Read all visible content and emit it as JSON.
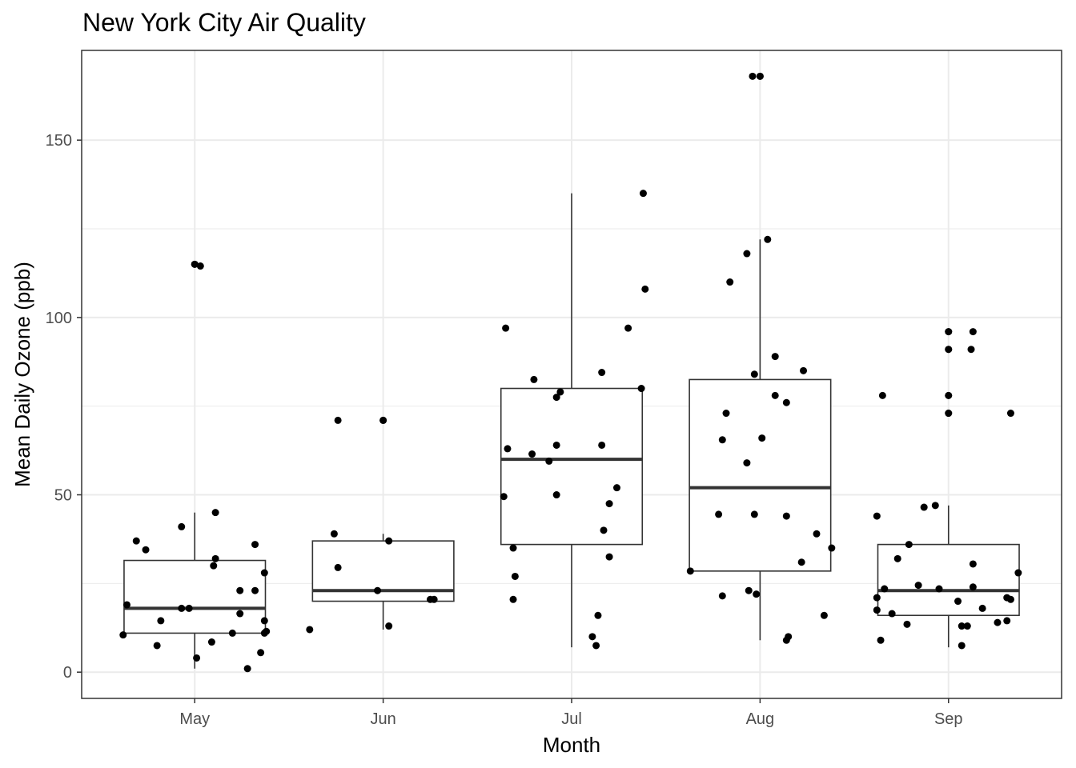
{
  "chart_data": {
    "type": "box",
    "title": "New York City Air Quality",
    "xlabel": "Month",
    "ylabel": "Mean Daily Ozone (ppb)",
    "categories": [
      "May",
      "Jun",
      "Jul",
      "Aug",
      "Sep"
    ],
    "ylim": [
      -7.4,
      175.3
    ],
    "yticks": [
      0,
      50,
      100,
      150
    ],
    "grid": true,
    "legend": "none",
    "boxes": [
      {
        "category": "May",
        "whisker_low": 1,
        "q1": 11,
        "median": 18,
        "q3": 31.5,
        "whisker_high": 45,
        "outliers": [
          115
        ]
      },
      {
        "category": "Jun",
        "whisker_low": 12,
        "q1": 20,
        "median": 23,
        "q3": 37,
        "whisker_high": 39,
        "outliers": [
          71
        ]
      },
      {
        "category": "Jul",
        "whisker_low": 7,
        "q1": 36,
        "median": 60,
        "q3": 80,
        "whisker_high": 135,
        "outliers": []
      },
      {
        "category": "Aug",
        "whisker_low": 9,
        "q1": 28.5,
        "median": 52,
        "q3": 82.5,
        "whisker_high": 122,
        "outliers": [
          168
        ]
      },
      {
        "category": "Sep",
        "whisker_low": 7,
        "q1": 16,
        "median": 23,
        "q3": 36,
        "whisker_high": 47,
        "outliers": [
          73,
          78,
          91,
          96
        ]
      }
    ],
    "points": [
      {
        "category": "May",
        "jitter": -0.36,
        "y": 19
      },
      {
        "category": "May",
        "jitter": -0.38,
        "y": 10.5
      },
      {
        "category": "May",
        "jitter": -0.31,
        "y": 37
      },
      {
        "category": "May",
        "jitter": -0.26,
        "y": 34.5
      },
      {
        "category": "May",
        "jitter": -0.2,
        "y": 7.5
      },
      {
        "category": "May",
        "jitter": -0.18,
        "y": 14.5
      },
      {
        "category": "May",
        "jitter": -0.07,
        "y": 41
      },
      {
        "category": "May",
        "jitter": -0.07,
        "y": 18
      },
      {
        "category": "May",
        "jitter": -0.03,
        "y": 18
      },
      {
        "category": "May",
        "jitter": 0.0,
        "y": 115
      },
      {
        "category": "May",
        "jitter": 0.03,
        "y": 114.5
      },
      {
        "category": "May",
        "jitter": 0.01,
        "y": 4
      },
      {
        "category": "May",
        "jitter": 0.11,
        "y": 45
      },
      {
        "category": "May",
        "jitter": 0.11,
        "y": 32
      },
      {
        "category": "May",
        "jitter": 0.1,
        "y": 30
      },
      {
        "category": "May",
        "jitter": 0.09,
        "y": 8.5
      },
      {
        "category": "May",
        "jitter": 0.2,
        "y": 11
      },
      {
        "category": "May",
        "jitter": 0.24,
        "y": 23
      },
      {
        "category": "May",
        "jitter": 0.24,
        "y": 16.5
      },
      {
        "category": "May",
        "jitter": 0.28,
        "y": 1
      },
      {
        "category": "May",
        "jitter": 0.32,
        "y": 36
      },
      {
        "category": "May",
        "jitter": 0.32,
        "y": 23
      },
      {
        "category": "May",
        "jitter": 0.35,
        "y": 5.5
      },
      {
        "category": "May",
        "jitter": 0.37,
        "y": 28
      },
      {
        "category": "May",
        "jitter": 0.37,
        "y": 14.5
      },
      {
        "category": "May",
        "jitter": 0.37,
        "y": 11
      },
      {
        "category": "May",
        "jitter": 0.38,
        "y": 11.5
      },
      {
        "category": "Jun",
        "jitter": -0.39,
        "y": 12
      },
      {
        "category": "Jun",
        "jitter": -0.26,
        "y": 39
      },
      {
        "category": "Jun",
        "jitter": -0.24,
        "y": 29.5
      },
      {
        "category": "Jun",
        "jitter": -0.24,
        "y": 71
      },
      {
        "category": "Jun",
        "jitter": -0.03,
        "y": 23
      },
      {
        "category": "Jun",
        "jitter": 0.0,
        "y": 71
      },
      {
        "category": "Jun",
        "jitter": 0.03,
        "y": 37
      },
      {
        "category": "Jun",
        "jitter": 0.03,
        "y": 13
      },
      {
        "category": "Jun",
        "jitter": 0.25,
        "y": 20.5
      },
      {
        "category": "Jun",
        "jitter": 0.27,
        "y": 20.5
      },
      {
        "category": "Jul",
        "jitter": -0.35,
        "y": 97
      },
      {
        "category": "Jul",
        "jitter": -0.34,
        "y": 63
      },
      {
        "category": "Jul",
        "jitter": -0.36,
        "y": 49.5
      },
      {
        "category": "Jul",
        "jitter": -0.31,
        "y": 35
      },
      {
        "category": "Jul",
        "jitter": -0.3,
        "y": 27
      },
      {
        "category": "Jul",
        "jitter": -0.31,
        "y": 20.5
      },
      {
        "category": "Jul",
        "jitter": -0.2,
        "y": 82.5
      },
      {
        "category": "Jul",
        "jitter": -0.21,
        "y": 61.5
      },
      {
        "category": "Jul",
        "jitter": -0.12,
        "y": 59.5
      },
      {
        "category": "Jul",
        "jitter": -0.08,
        "y": 77.5
      },
      {
        "category": "Jul",
        "jitter": -0.06,
        "y": 79
      },
      {
        "category": "Jul",
        "jitter": -0.08,
        "y": 64
      },
      {
        "category": "Jul",
        "jitter": -0.08,
        "y": 50
      },
      {
        "category": "Jul",
        "jitter": 0.11,
        "y": 10
      },
      {
        "category": "Jul",
        "jitter": 0.13,
        "y": 7.5
      },
      {
        "category": "Jul",
        "jitter": 0.14,
        "y": 16
      },
      {
        "category": "Jul",
        "jitter": 0.16,
        "y": 84.5
      },
      {
        "category": "Jul",
        "jitter": 0.16,
        "y": 64
      },
      {
        "category": "Jul",
        "jitter": 0.17,
        "y": 40
      },
      {
        "category": "Jul",
        "jitter": 0.2,
        "y": 47.5
      },
      {
        "category": "Jul",
        "jitter": 0.2,
        "y": 32.5
      },
      {
        "category": "Jul",
        "jitter": 0.24,
        "y": 52
      },
      {
        "category": "Jul",
        "jitter": 0.3,
        "y": 97
      },
      {
        "category": "Jul",
        "jitter": 0.37,
        "y": 80
      },
      {
        "category": "Jul",
        "jitter": 0.38,
        "y": 135
      },
      {
        "category": "Jul",
        "jitter": 0.39,
        "y": 108
      },
      {
        "category": "Aug",
        "jitter": -0.37,
        "y": 28.5
      },
      {
        "category": "Aug",
        "jitter": -0.22,
        "y": 44.5
      },
      {
        "category": "Aug",
        "jitter": -0.2,
        "y": 65.5
      },
      {
        "category": "Aug",
        "jitter": -0.2,
        "y": 21.5
      },
      {
        "category": "Aug",
        "jitter": -0.18,
        "y": 73
      },
      {
        "category": "Aug",
        "jitter": -0.16,
        "y": 110
      },
      {
        "category": "Aug",
        "jitter": -0.07,
        "y": 118
      },
      {
        "category": "Aug",
        "jitter": -0.07,
        "y": 59
      },
      {
        "category": "Aug",
        "jitter": -0.06,
        "y": 23
      },
      {
        "category": "Aug",
        "jitter": -0.04,
        "y": 168
      },
      {
        "category": "Aug",
        "jitter": -0.03,
        "y": 84
      },
      {
        "category": "Aug",
        "jitter": -0.03,
        "y": 44.5
      },
      {
        "category": "Aug",
        "jitter": -0.02,
        "y": 22
      },
      {
        "category": "Aug",
        "jitter": 0.0,
        "y": 168
      },
      {
        "category": "Aug",
        "jitter": 0.01,
        "y": 66
      },
      {
        "category": "Aug",
        "jitter": 0.04,
        "y": 122
      },
      {
        "category": "Aug",
        "jitter": 0.08,
        "y": 89
      },
      {
        "category": "Aug",
        "jitter": 0.08,
        "y": 78
      },
      {
        "category": "Aug",
        "jitter": 0.14,
        "y": 76
      },
      {
        "category": "Aug",
        "jitter": 0.14,
        "y": 44
      },
      {
        "category": "Aug",
        "jitter": 0.14,
        "y": 9
      },
      {
        "category": "Aug",
        "jitter": 0.15,
        "y": 10
      },
      {
        "category": "Aug",
        "jitter": 0.22,
        "y": 31
      },
      {
        "category": "Aug",
        "jitter": 0.23,
        "y": 85
      },
      {
        "category": "Aug",
        "jitter": 0.3,
        "y": 39
      },
      {
        "category": "Aug",
        "jitter": 0.34,
        "y": 16
      },
      {
        "category": "Aug",
        "jitter": 0.38,
        "y": 35
      },
      {
        "category": "Sep",
        "jitter": -0.38,
        "y": 44
      },
      {
        "category": "Sep",
        "jitter": -0.38,
        "y": 21
      },
      {
        "category": "Sep",
        "jitter": -0.38,
        "y": 17.5
      },
      {
        "category": "Sep",
        "jitter": -0.36,
        "y": 9
      },
      {
        "category": "Sep",
        "jitter": -0.34,
        "y": 23.5
      },
      {
        "category": "Sep",
        "jitter": -0.35,
        "y": 78
      },
      {
        "category": "Sep",
        "jitter": -0.3,
        "y": 16.5
      },
      {
        "category": "Sep",
        "jitter": -0.27,
        "y": 32
      },
      {
        "category": "Sep",
        "jitter": -0.22,
        "y": 13.5
      },
      {
        "category": "Sep",
        "jitter": -0.21,
        "y": 36
      },
      {
        "category": "Sep",
        "jitter": -0.16,
        "y": 24.5
      },
      {
        "category": "Sep",
        "jitter": -0.13,
        "y": 46.5
      },
      {
        "category": "Sep",
        "jitter": -0.07,
        "y": 47
      },
      {
        "category": "Sep",
        "jitter": -0.05,
        "y": 23.5
      },
      {
        "category": "Sep",
        "jitter": 0.0,
        "y": 96
      },
      {
        "category": "Sep",
        "jitter": 0.0,
        "y": 91
      },
      {
        "category": "Sep",
        "jitter": 0.0,
        "y": 78
      },
      {
        "category": "Sep",
        "jitter": 0.0,
        "y": 73
      },
      {
        "category": "Sep",
        "jitter": 0.05,
        "y": 20
      },
      {
        "category": "Sep",
        "jitter": 0.07,
        "y": 13
      },
      {
        "category": "Sep",
        "jitter": 0.07,
        "y": 7.5
      },
      {
        "category": "Sep",
        "jitter": 0.1,
        "y": 13
      },
      {
        "category": "Sep",
        "jitter": 0.12,
        "y": 91
      },
      {
        "category": "Sep",
        "jitter": 0.13,
        "y": 96
      },
      {
        "category": "Sep",
        "jitter": 0.13,
        "y": 30.5
      },
      {
        "category": "Sep",
        "jitter": 0.13,
        "y": 24
      },
      {
        "category": "Sep",
        "jitter": 0.18,
        "y": 18
      },
      {
        "category": "Sep",
        "jitter": 0.26,
        "y": 14
      },
      {
        "category": "Sep",
        "jitter": 0.31,
        "y": 14.5
      },
      {
        "category": "Sep",
        "jitter": 0.31,
        "y": 21
      },
      {
        "category": "Sep",
        "jitter": 0.33,
        "y": 20.5
      },
      {
        "category": "Sep",
        "jitter": 0.33,
        "y": 73
      },
      {
        "category": "Sep",
        "jitter": 0.37,
        "y": 28
      }
    ],
    "colors": {
      "points": "#000000",
      "box_line": "#333333",
      "grid": "#ebebeb",
      "panel_border": "#333333",
      "tick_label": "#4d4d4d"
    }
  }
}
